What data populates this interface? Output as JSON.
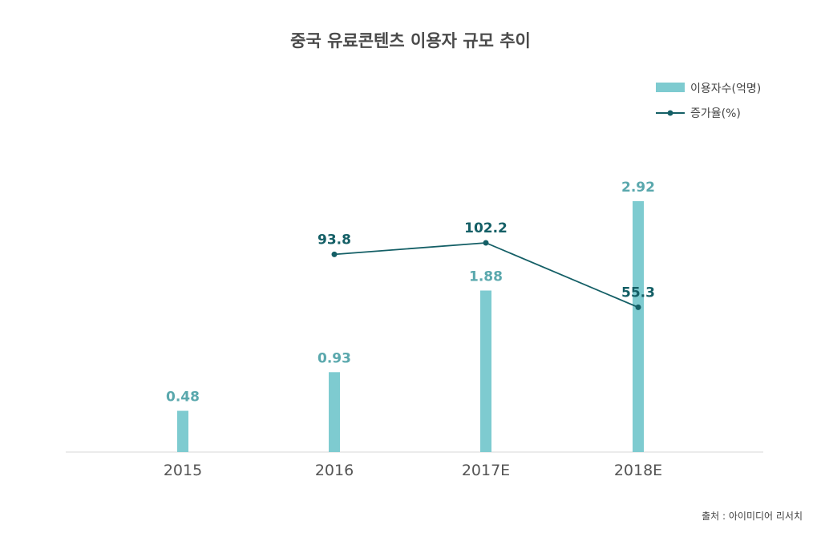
{
  "chart_data": {
    "type": "bar",
    "title": "중국 유료콘텐츠 이용자 규모 추이",
    "categories": [
      "2015",
      "2016",
      "2017E",
      "2018E"
    ],
    "series": [
      {
        "name": "이용자수(억명)",
        "kind": "bar",
        "values": [
          0.48,
          0.93,
          1.88,
          2.92
        ],
        "labels": [
          "0.48",
          "0.93",
          "1.88",
          "2.92"
        ],
        "color": "#7ecbd0",
        "label_color": "#5aa8ad"
      },
      {
        "name": "증가율(%)",
        "kind": "line",
        "values": [
          null,
          93.8,
          102.2,
          55.3
        ],
        "labels": [
          "",
          "93.8",
          "102.2",
          "55.3"
        ],
        "color": "#145f66",
        "label_color": "#145f66"
      }
    ],
    "bar_axis_range": [
      0,
      3.2
    ],
    "line_axis_range": [
      -50,
      150
    ],
    "xlabel": "",
    "ylabel": "",
    "grid": false,
    "legend_position": "top-right",
    "source": "출처 : 아이미디어 리서치"
  },
  "colors": {
    "bar": "#7ecbd0",
    "line": "#145f66",
    "axis": "#d7d7d7"
  }
}
